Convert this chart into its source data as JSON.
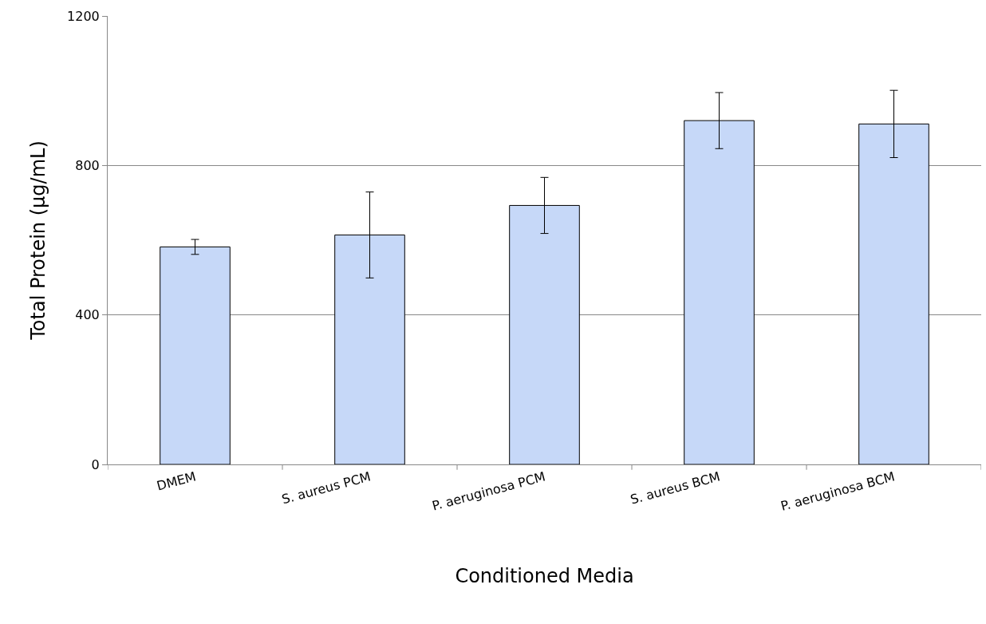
{
  "chart_data": {
    "type": "bar",
    "xlabel": "Conditioned Media",
    "ylabel": "Total Protein (µg/mL)",
    "categories": [
      "DMEM",
      "S. aureus PCM",
      "P. aeruginosa PCM",
      "S. aureus BCM",
      "P. aeruginosa BCM"
    ],
    "values": [
      582,
      614,
      693,
      920,
      911
    ],
    "errors": [
      20,
      115,
      75,
      75,
      90
    ],
    "color": "#c6d8f8",
    "ylim": [
      0,
      1200
    ],
    "yticks": [
      0,
      400,
      800,
      1200
    ],
    "grid": "y",
    "legend": false
  }
}
